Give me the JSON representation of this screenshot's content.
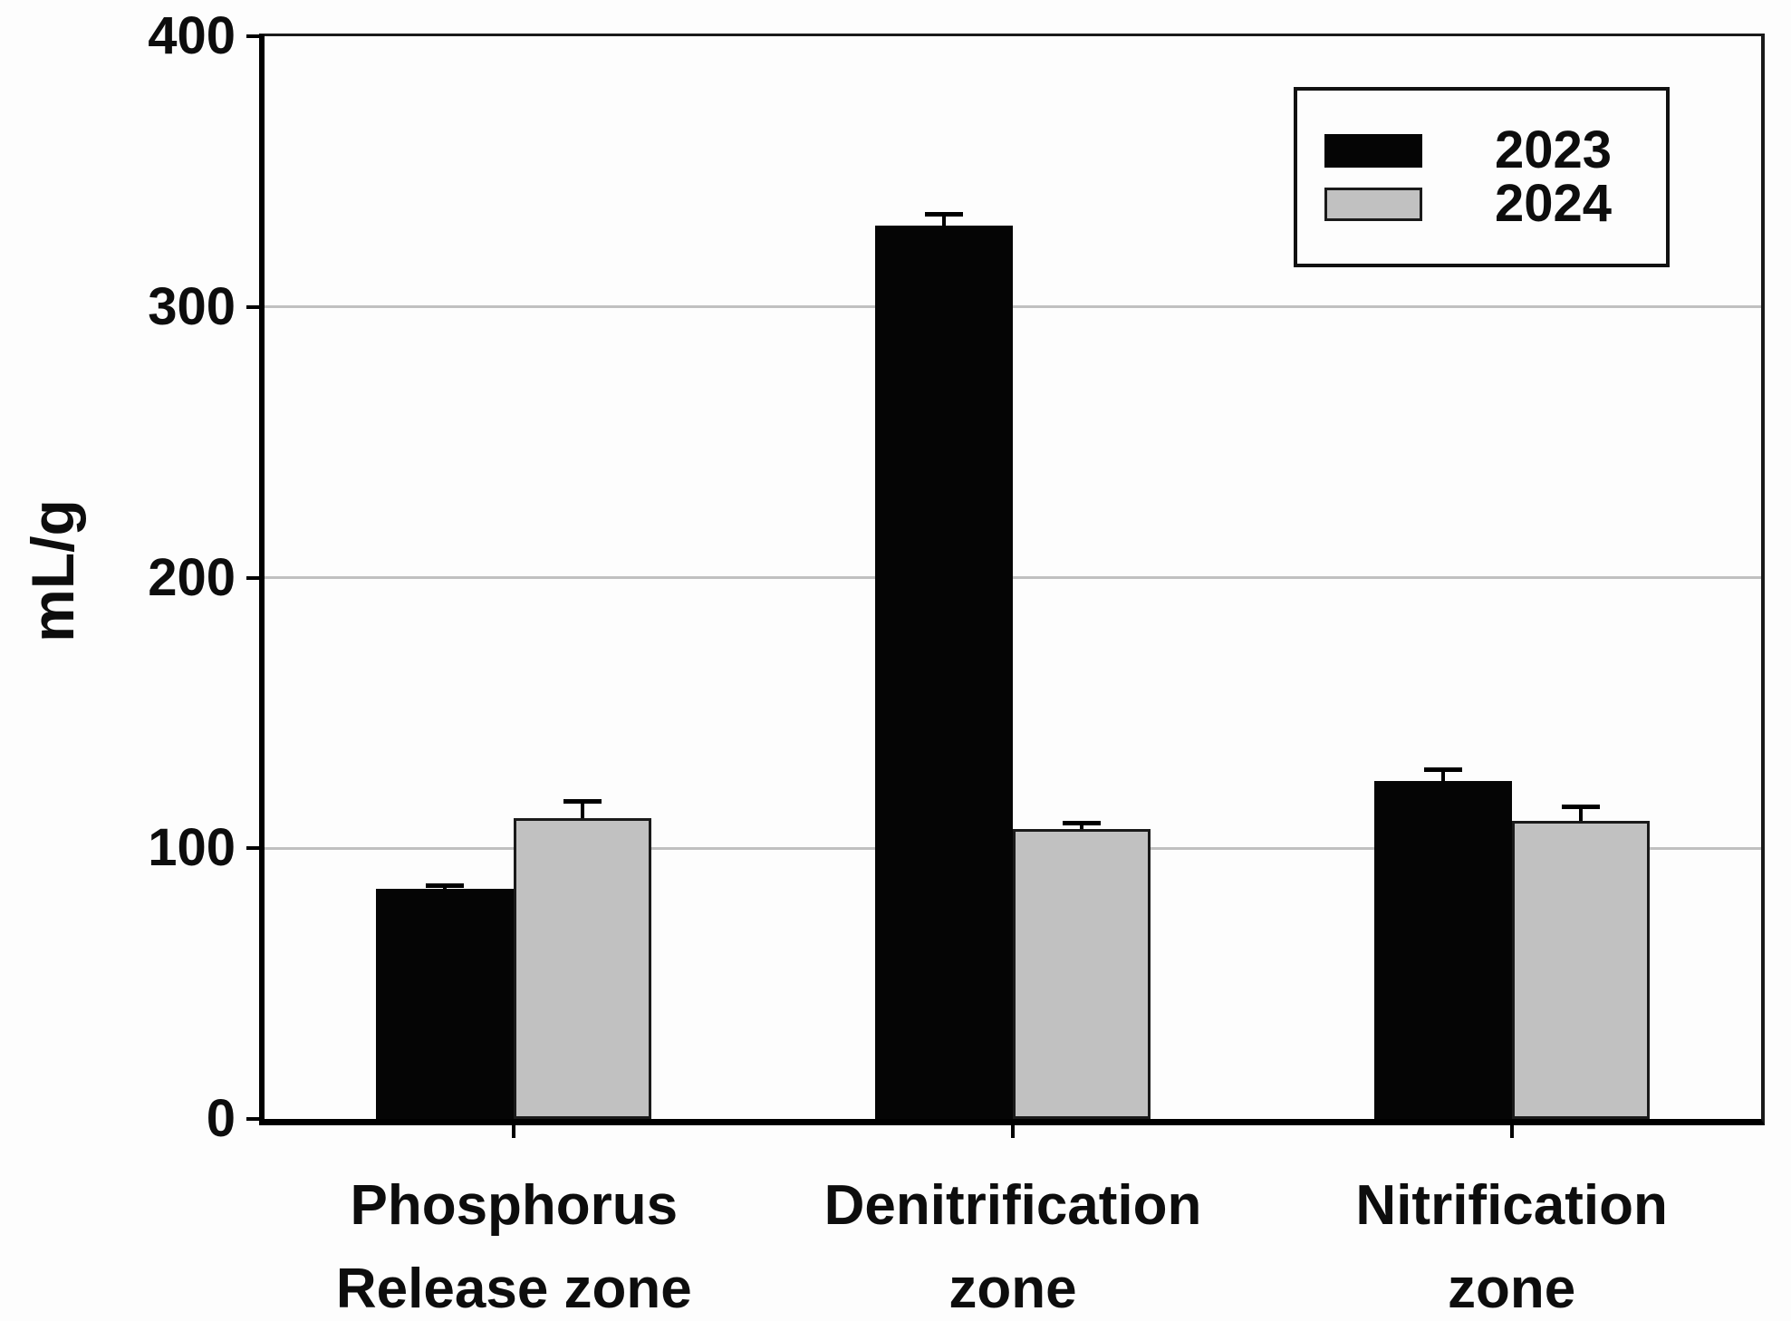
{
  "chart_data": {
    "type": "bar",
    "title": "",
    "ylabel": "mL/g",
    "xlabel": "",
    "ylim": [
      0,
      400
    ],
    "yticks": [
      0,
      100,
      200,
      300,
      400
    ],
    "gridlines": [
      100,
      200,
      300
    ],
    "grid": "horizontal-only",
    "legend_position": "top-right",
    "error_bars": true,
    "categories": [
      {
        "label": "Phosphorus Release zone",
        "label_lines": [
          "Phosphorus",
          "Release zone"
        ]
      },
      {
        "label": "Denitrification zone",
        "label_lines": [
          "Denitrification",
          "zone"
        ]
      },
      {
        "label": "Nitrification zone",
        "label_lines": [
          "Nitrification",
          "zone"
        ]
      }
    ],
    "series": [
      {
        "name": "2023",
        "color": "#050505",
        "border_color": "#050505",
        "values": [
          85,
          330,
          125
        ],
        "errors": [
          2,
          5,
          5
        ]
      },
      {
        "name": "2024",
        "color": "#c1c1c1",
        "border_color": "#1a1a1a",
        "values": [
          111,
          107,
          110
        ],
        "errors": [
          7,
          3,
          6
        ]
      }
    ]
  },
  "colors": {
    "background": "#fdfdfd",
    "axis": "#000000",
    "gridline": "#c0c0c0",
    "text": "#0d0d0d",
    "series_2023": "#050505",
    "series_2024": "#c1c1c1"
  }
}
